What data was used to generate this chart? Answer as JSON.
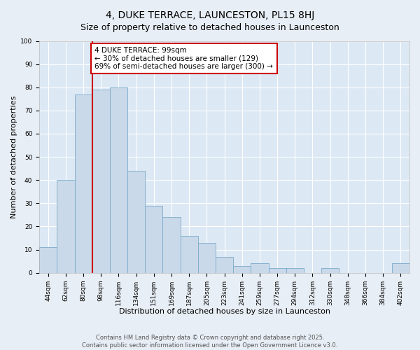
{
  "title": "4, DUKE TERRACE, LAUNCESTON, PL15 8HJ",
  "subtitle": "Size of property relative to detached houses in Launceston",
  "xlabel": "Distribution of detached houses by size in Launceston",
  "ylabel": "Number of detached properties",
  "bar_labels": [
    "44sqm",
    "62sqm",
    "80sqm",
    "98sqm",
    "116sqm",
    "134sqm",
    "151sqm",
    "169sqm",
    "187sqm",
    "205sqm",
    "223sqm",
    "241sqm",
    "259sqm",
    "277sqm",
    "294sqm",
    "312sqm",
    "330sqm",
    "348sqm",
    "366sqm",
    "384sqm",
    "402sqm"
  ],
  "bar_values": [
    11,
    40,
    77,
    79,
    80,
    44,
    29,
    24,
    16,
    13,
    7,
    3,
    4,
    2,
    2,
    0,
    2,
    0,
    0,
    0,
    4
  ],
  "bar_color": "#c9d9ea",
  "bar_edge_color": "#7aaac8",
  "vline_color": "#cc0000",
  "vline_x_index": 3,
  "annotation_text": "4 DUKE TERRACE: 99sqm\n← 30% of detached houses are smaller (129)\n69% of semi-detached houses are larger (300) →",
  "annotation_box_color": "#ffffff",
  "annotation_box_edge_color": "#cc0000",
  "ylim": [
    0,
    100
  ],
  "background_color": "#e8eef5",
  "plot_background_color": "#dce8f4",
  "grid_color": "#ffffff",
  "footer_line1": "Contains HM Land Registry data © Crown copyright and database right 2025.",
  "footer_line2": "Contains public sector information licensed under the Open Government Licence v3.0.",
  "title_fontsize": 10,
  "subtitle_fontsize": 9,
  "xlabel_fontsize": 8,
  "ylabel_fontsize": 8,
  "tick_fontsize": 6.5,
  "annotation_fontsize": 7.5,
  "footer_fontsize": 6
}
